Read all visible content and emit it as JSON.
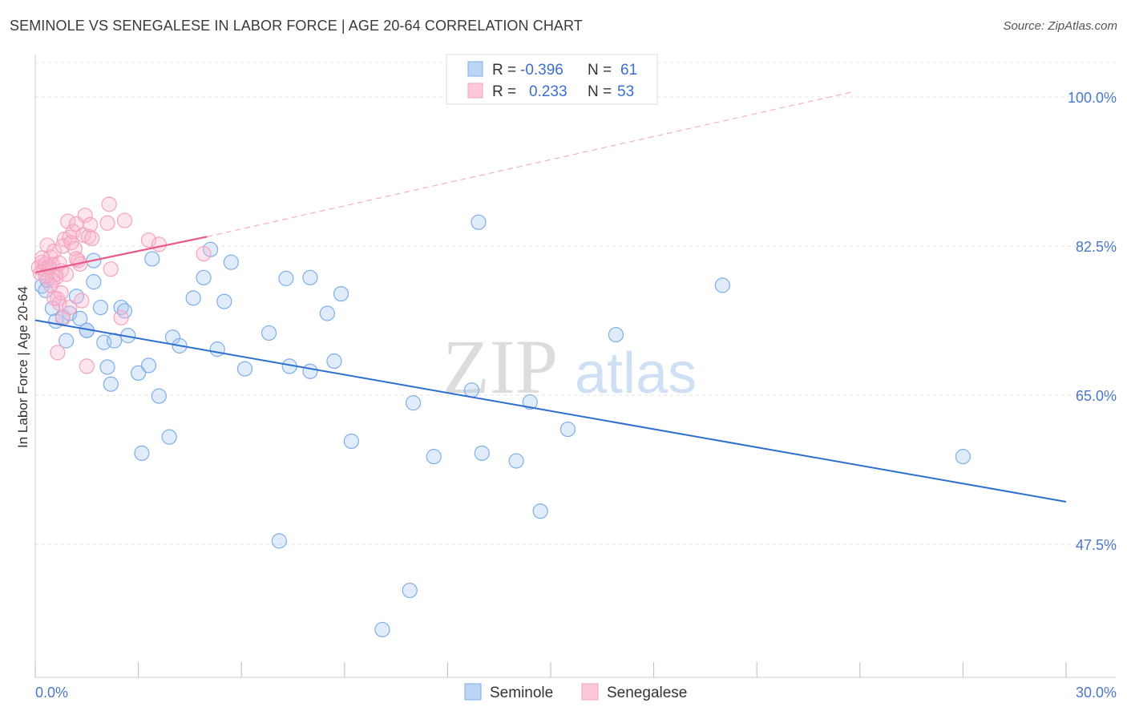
{
  "title": "SEMINOLE VS SENEGALESE IN LABOR FORCE | AGE 20-64 CORRELATION CHART",
  "source": "Source: ZipAtlas.com",
  "watermark": {
    "zip": "ZIP",
    "atlas": "atlas"
  },
  "chart_data": {
    "type": "scatter",
    "title": "SEMINOLE VS SENEGALESE IN LABOR FORCE | AGE 20-64 CORRELATION CHART",
    "ylabel": "In Labor Force | Age 20-64",
    "xlabel": "",
    "xlim": [
      0,
      30
    ],
    "ylim": [
      31.9,
      104.6
    ],
    "x_tick_labels": [
      "0.0%",
      "30.0%"
    ],
    "y_ticks": [
      47.5,
      65.0,
      82.5,
      100.0
    ],
    "y_tick_labels": [
      "47.5%",
      "65.0%",
      "82.5%",
      "100.0%"
    ],
    "grid": true,
    "legend": {
      "position": "top-center",
      "entries": [
        {
          "r_label": "R = ",
          "r_value": "-0.396",
          "n_label": "N = ",
          "n_value": "61"
        },
        {
          "r_label": "R = ",
          "r_value": "0.233",
          "n_label": "N = ",
          "n_value": "53"
        }
      ]
    },
    "series": [
      {
        "name": "Seminole",
        "color": "#7eaee8",
        "line_color": "#2c6fcf",
        "trend": {
          "x": [
            0,
            30
          ],
          "y": [
            73.8,
            52.5
          ]
        },
        "points": [
          [
            0.2,
            77.8
          ],
          [
            0.3,
            77.3
          ],
          [
            0.35,
            78.5
          ],
          [
            0.5,
            75.2
          ],
          [
            0.6,
            73.7
          ],
          [
            0.8,
            74.2
          ],
          [
            0.9,
            71.4
          ],
          [
            1.0,
            74.6
          ],
          [
            1.2,
            76.6
          ],
          [
            1.3,
            74.0
          ],
          [
            1.5,
            72.6
          ],
          [
            1.7,
            80.8
          ],
          [
            1.7,
            78.3
          ],
          [
            1.9,
            75.3
          ],
          [
            2.0,
            71.2
          ],
          [
            2.1,
            68.3
          ],
          [
            2.2,
            66.3
          ],
          [
            2.3,
            71.4
          ],
          [
            2.5,
            75.3
          ],
          [
            2.6,
            74.9
          ],
          [
            2.7,
            72.0
          ],
          [
            3.0,
            67.6
          ],
          [
            3.1,
            58.2
          ],
          [
            3.3,
            68.5
          ],
          [
            3.4,
            81.0
          ],
          [
            3.6,
            64.9
          ],
          [
            3.9,
            60.1
          ],
          [
            4.0,
            71.8
          ],
          [
            4.2,
            70.8
          ],
          [
            4.6,
            76.4
          ],
          [
            4.9,
            78.8
          ],
          [
            5.1,
            82.1
          ],
          [
            5.3,
            70.4
          ],
          [
            5.5,
            76.0
          ],
          [
            5.7,
            80.6
          ],
          [
            6.1,
            68.1
          ],
          [
            6.8,
            72.3
          ],
          [
            7.1,
            47.9
          ],
          [
            7.3,
            78.7
          ],
          [
            7.4,
            68.4
          ],
          [
            8.0,
            67.8
          ],
          [
            8.0,
            78.8
          ],
          [
            8.5,
            74.6
          ],
          [
            8.7,
            69.0
          ],
          [
            8.9,
            76.9
          ],
          [
            9.2,
            59.6
          ],
          [
            10.1,
            37.5
          ],
          [
            10.9,
            42.1
          ],
          [
            11.0,
            64.1
          ],
          [
            11.6,
            57.8
          ],
          [
            12.7,
            65.6
          ],
          [
            12.9,
            85.3
          ],
          [
            13.0,
            58.2
          ],
          [
            14.0,
            57.3
          ],
          [
            14.4,
            64.2
          ],
          [
            14.7,
            51.4
          ],
          [
            15.5,
            61.0
          ],
          [
            16.9,
            72.1
          ],
          [
            20.0,
            77.9
          ],
          [
            27.0,
            57.8
          ],
          [
            1.5,
            72.6
          ]
        ]
      },
      {
        "name": "Senegalese",
        "color": "#f5a3bd",
        "line_color": "#e8588a",
        "trend": {
          "x": [
            0,
            5.0
          ],
          "y": [
            79.4,
            83.6
          ]
        },
        "trend_ext": {
          "x": [
            5.0,
            23.8
          ],
          "y": [
            83.6,
            100.6
          ]
        },
        "points": [
          [
            0.1,
            80.0
          ],
          [
            0.15,
            79.3
          ],
          [
            0.2,
            80.6
          ],
          [
            0.25,
            79.8
          ],
          [
            0.3,
            80.4
          ],
          [
            0.35,
            82.6
          ],
          [
            0.4,
            79.9
          ],
          [
            0.45,
            81.2
          ],
          [
            0.5,
            80.3
          ],
          [
            0.55,
            81.9
          ],
          [
            0.6,
            79.2
          ],
          [
            0.65,
            76.3
          ],
          [
            0.7,
            75.8
          ],
          [
            0.75,
            79.6
          ],
          [
            0.8,
            82.5
          ],
          [
            0.85,
            83.3
          ],
          [
            0.9,
            79.2
          ],
          [
            0.95,
            85.4
          ],
          [
            1.0,
            83.5
          ],
          [
            1.05,
            82.9
          ],
          [
            1.1,
            84.2
          ],
          [
            1.15,
            82.2
          ],
          [
            1.2,
            85.1
          ],
          [
            1.25,
            80.8
          ],
          [
            1.3,
            80.4
          ],
          [
            1.35,
            76.1
          ],
          [
            1.4,
            83.8
          ],
          [
            1.45,
            86.1
          ],
          [
            1.5,
            68.4
          ],
          [
            1.55,
            83.6
          ],
          [
            1.6,
            85.0
          ],
          [
            1.65,
            83.4
          ],
          [
            2.1,
            85.2
          ],
          [
            2.15,
            87.4
          ],
          [
            2.2,
            79.8
          ],
          [
            2.5,
            74.1
          ],
          [
            2.6,
            85.5
          ],
          [
            3.3,
            83.2
          ],
          [
            3.6,
            82.7
          ],
          [
            4.9,
            81.6
          ],
          [
            0.4,
            80.1
          ],
          [
            0.5,
            78.5
          ],
          [
            0.6,
            78.8
          ],
          [
            0.7,
            80.5
          ],
          [
            0.75,
            77.0
          ],
          [
            0.8,
            74.0
          ],
          [
            0.65,
            70.0
          ],
          [
            0.55,
            76.4
          ],
          [
            0.45,
            77.9
          ],
          [
            1.0,
            75.3
          ],
          [
            1.2,
            81.0
          ],
          [
            0.3,
            79.0
          ],
          [
            0.2,
            81.1
          ]
        ]
      }
    ]
  }
}
